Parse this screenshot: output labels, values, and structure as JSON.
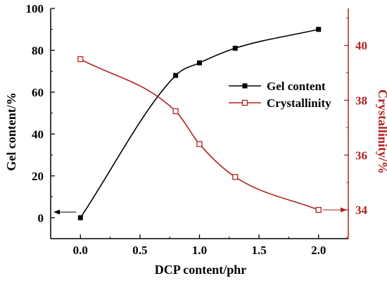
{
  "chart_data": {
    "type": "line",
    "title": "",
    "xlabel": "DCP content/phr",
    "ylabel_left": "Gel content/%",
    "ylabel_right": "Crystallinity/%",
    "xlim": [
      -0.25,
      2.25
    ],
    "ylim_left": [
      -10,
      100
    ],
    "ylim_right": [
      32.95,
      41.35
    ],
    "x_ticks": [
      "0.0",
      "0.5",
      "1.0",
      "1.5",
      "2.0"
    ],
    "y_left_ticks": [
      "0",
      "20",
      "40",
      "60",
      "80",
      "100"
    ],
    "y_right_ticks": [
      "34",
      "36",
      "38",
      "40"
    ],
    "grid": false,
    "legend_position": "right-center",
    "series": [
      {
        "name": "Gel content",
        "axis": "left",
        "color": "#000000",
        "marker": "filled-square",
        "x": [
          0.0,
          0.8,
          1.0,
          1.3,
          2.0
        ],
        "y": [
          0.0,
          68.0,
          74.0,
          81.0,
          90.0
        ]
      },
      {
        "name": "Crystallinity",
        "axis": "right",
        "color": "#b22222",
        "marker": "open-square",
        "x": [
          0.0,
          0.8,
          1.0,
          1.3,
          2.0
        ],
        "y": [
          39.5,
          37.6,
          36.4,
          35.2,
          34.0
        ]
      }
    ],
    "annotations": [
      {
        "type": "arrow",
        "points_to": "left-axis",
        "series": "Gel content"
      },
      {
        "type": "arrow",
        "points_to": "right-axis",
        "series": "Crystallinity"
      }
    ]
  }
}
